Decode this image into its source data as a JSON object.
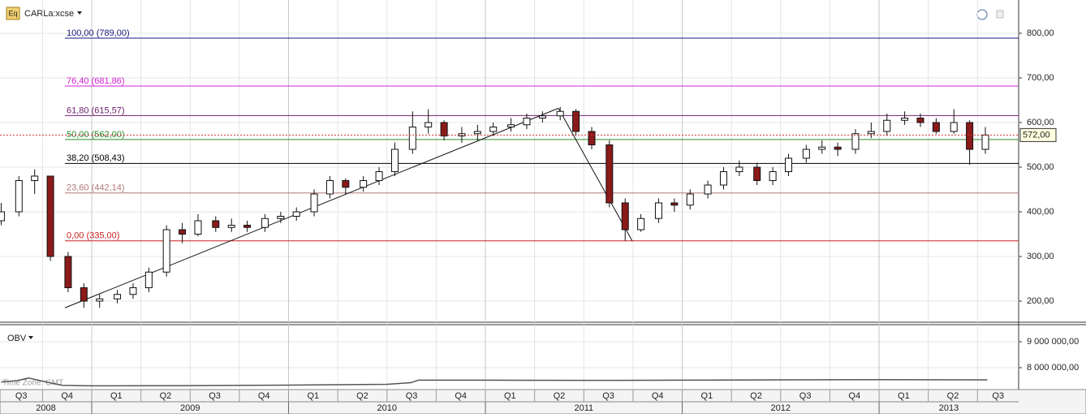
{
  "chart_data": {
    "type": "candlestick",
    "title": "CARLa:xcse",
    "icon_label": "Eq",
    "xlim": [
      2008.534,
      2013.709
    ],
    "ylim": [
      152.7,
      874.5
    ],
    "yticks": [
      {
        "value": 800,
        "label": "800,00"
      },
      {
        "value": 700,
        "label": "700,00"
      },
      {
        "value": 600,
        "label": "600,00"
      },
      {
        "value": 500,
        "label": "500,00"
      },
      {
        "value": 400,
        "label": "400,00"
      },
      {
        "value": 300,
        "label": "300,00"
      },
      {
        "value": 200,
        "label": "200,00"
      }
    ],
    "quarters": [
      {
        "value": 2008.5,
        "label": "Q3"
      },
      {
        "value": 2008.75,
        "label": "Q4"
      },
      {
        "value": 2009.0,
        "label": "Q1"
      },
      {
        "value": 2009.25,
        "label": "Q2"
      },
      {
        "value": 2009.5,
        "label": "Q3"
      },
      {
        "value": 2009.75,
        "label": "Q4"
      },
      {
        "value": 2010.0,
        "label": "Q1"
      },
      {
        "value": 2010.25,
        "label": "Q2"
      },
      {
        "value": 2010.5,
        "label": "Q3"
      },
      {
        "value": 2010.75,
        "label": "Q4"
      },
      {
        "value": 2011.0,
        "label": "Q1"
      },
      {
        "value": 2011.25,
        "label": "Q2"
      },
      {
        "value": 2011.5,
        "label": "Q3"
      },
      {
        "value": 2011.75,
        "label": "Q4"
      },
      {
        "value": 2012.0,
        "label": "Q1"
      },
      {
        "value": 2012.25,
        "label": "Q2"
      },
      {
        "value": 2012.5,
        "label": "Q3"
      },
      {
        "value": 2012.75,
        "label": "Q4"
      },
      {
        "value": 2013.0,
        "label": "Q1"
      },
      {
        "value": 2013.25,
        "label": "Q2"
      },
      {
        "value": 2013.5,
        "label": "Q3"
      }
    ],
    "years": [
      {
        "value": 2008,
        "label": "2008"
      },
      {
        "value": 2009,
        "label": "2009"
      },
      {
        "value": 2010,
        "label": "2010"
      },
      {
        "value": 2011,
        "label": "2011"
      },
      {
        "value": 2012,
        "label": "2012"
      },
      {
        "value": 2013,
        "label": "2013"
      }
    ],
    "candles": {
      "x": [
        2008.54,
        2008.63,
        2008.71,
        2008.79,
        2008.88,
        2008.96,
        2009.04,
        2009.13,
        2009.21,
        2009.29,
        2009.38,
        2009.46,
        2009.54,
        2009.63,
        2009.71,
        2009.79,
        2009.88,
        2009.96,
        2010.04,
        2010.13,
        2010.21,
        2010.29,
        2010.38,
        2010.46,
        2010.54,
        2010.63,
        2010.71,
        2010.79,
        2010.88,
        2010.96,
        2011.04,
        2011.13,
        2011.21,
        2011.29,
        2011.38,
        2011.46,
        2011.54,
        2011.63,
        2011.71,
        2011.79,
        2011.88,
        2011.96,
        2012.04,
        2012.13,
        2012.21,
        2012.29,
        2012.38,
        2012.46,
        2012.54,
        2012.63,
        2012.71,
        2012.79,
        2012.88,
        2012.96,
        2013.04,
        2013.13,
        2013.21,
        2013.29,
        2013.38,
        2013.46,
        2013.54
      ],
      "open": [
        380,
        400,
        470,
        480,
        300,
        230,
        200,
        205,
        215,
        230,
        265,
        360,
        350,
        380,
        365,
        370,
        365,
        385,
        390,
        400,
        440,
        470,
        455,
        470,
        490,
        540,
        590,
        600,
        570,
        575,
        580,
        590,
        595,
        610,
        615,
        625,
        580,
        550,
        420,
        360,
        385,
        420,
        415,
        440,
        460,
        490,
        500,
        470,
        490,
        520,
        540,
        545,
        540,
        575,
        580,
        605,
        610,
        600,
        580,
        600,
        540
      ],
      "high": [
        420,
        480,
        495,
        480,
        310,
        240,
        215,
        225,
        240,
        275,
        370,
        375,
        395,
        390,
        385,
        380,
        395,
        400,
        410,
        450,
        480,
        475,
        480,
        500,
        555,
        625,
        630,
        605,
        590,
        595,
        600,
        610,
        620,
        625,
        635,
        630,
        590,
        560,
        430,
        395,
        430,
        430,
        450,
        470,
        500,
        515,
        510,
        500,
        530,
        550,
        560,
        555,
        585,
        600,
        620,
        625,
        620,
        610,
        630,
        605,
        590
      ],
      "low": [
        370,
        390,
        440,
        290,
        220,
        185,
        185,
        195,
        205,
        220,
        255,
        330,
        345,
        355,
        355,
        355,
        355,
        375,
        380,
        390,
        430,
        440,
        445,
        460,
        480,
        530,
        575,
        560,
        555,
        560,
        570,
        580,
        585,
        600,
        605,
        570,
        540,
        410,
        335,
        355,
        375,
        400,
        405,
        430,
        450,
        480,
        460,
        460,
        480,
        510,
        530,
        525,
        530,
        565,
        570,
        595,
        590,
        575,
        575,
        505,
        530
      ],
      "close": [
        400,
        470,
        480,
        300,
        230,
        200,
        205,
        215,
        230,
        265,
        360,
        350,
        380,
        365,
        370,
        365,
        385,
        390,
        400,
        440,
        470,
        455,
        470,
        490,
        540,
        590,
        600,
        570,
        575,
        580,
        590,
        595,
        610,
        615,
        625,
        580,
        550,
        420,
        360,
        385,
        420,
        415,
        440,
        460,
        490,
        500,
        470,
        490,
        520,
        540,
        545,
        540,
        575,
        580,
        605,
        610,
        600,
        580,
        600,
        540,
        572
      ],
      "up_color": "#ffffff",
      "down_color": "#8b1a1a"
    },
    "fib_levels": [
      {
        "label": "100,00 (789,00)",
        "value": 789,
        "color": "#1a1a80"
      },
      {
        "label": "76,40 (681,86)",
        "value": 681.86,
        "color": "#d020d0"
      },
      {
        "label": "61,80 (615,57)",
        "value": 615.57,
        "color": "#702070"
      },
      {
        "label": "50,00 (562,00)",
        "value": 562,
        "color": "#2a8a2a"
      },
      {
        "label": "38,20 (508,43)",
        "value": 508.43,
        "color": "#000000"
      },
      {
        "label": "23,60 (442,14)",
        "value": 442.14,
        "color": "#b07878"
      },
      {
        "label": "0,00 (335,00)",
        "value": 335,
        "color": "#cc2020"
      }
    ],
    "trendlines": [
      {
        "x": [
          2008.864,
          2011.371
        ],
        "y": [
          185,
          632
        ]
      },
      {
        "x": [
          2011.371,
          2011.746
        ],
        "y": [
          632,
          335
        ]
      }
    ],
    "last_price": {
      "value": 572,
      "label": "572,00"
    },
    "obv": {
      "name": "OBV",
      "timezone": "Time Zone: GMT",
      "ylim": [
        7187500,
        9593750
      ],
      "yticks": [
        {
          "value": 9000000,
          "label": "9 000 000,00"
        },
        {
          "value": 8000000,
          "label": "8 000 000,00"
        }
      ],
      "x": [
        2008.54,
        2008.62,
        2008.68,
        2008.75,
        2008.85,
        2009.0,
        2009.5,
        2010.0,
        2010.5,
        2010.62,
        2010.66,
        2011.0,
        2011.5,
        2012.0,
        2012.5,
        2013.0,
        2013.55
      ],
      "values": [
        7450000,
        7500000,
        7600000,
        7480000,
        7320000,
        7300000,
        7310000,
        7330000,
        7360000,
        7420000,
        7520000,
        7520000,
        7510000,
        7520000,
        7530000,
        7540000,
        7530000
      ],
      "color": "#555555"
    }
  }
}
